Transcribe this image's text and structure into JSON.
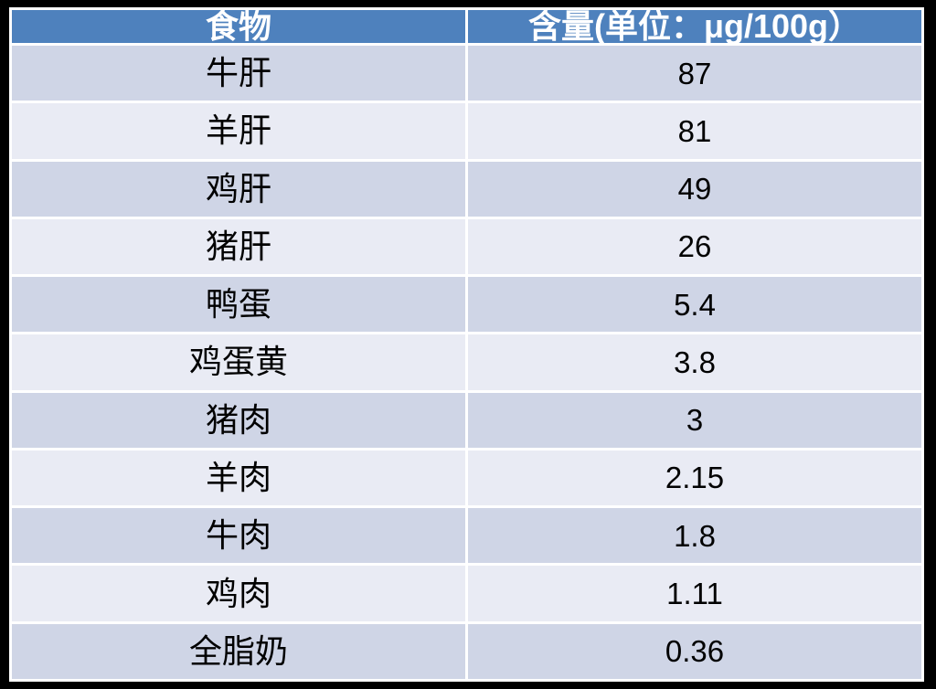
{
  "table": {
    "columns": [
      {
        "key": "food",
        "label": "食物"
      },
      {
        "key": "amount",
        "label": "含量(单位：μg/100g）"
      }
    ],
    "rows": [
      {
        "food": "牛肝",
        "amount": "87"
      },
      {
        "food": "羊肝",
        "amount": "81"
      },
      {
        "food": "鸡肝",
        "amount": "49"
      },
      {
        "food": "猪肝",
        "amount": "26"
      },
      {
        "food": "鸭蛋",
        "amount": "5.4"
      },
      {
        "food": "鸡蛋黄",
        "amount": "3.8"
      },
      {
        "food": "猪肉",
        "amount": "3"
      },
      {
        "food": "羊肉",
        "amount": "2.15"
      },
      {
        "food": "牛肉",
        "amount": "1.8"
      },
      {
        "food": "鸡肉",
        "amount": "1.11"
      },
      {
        "food": "全脂奶",
        "amount": "0.36"
      }
    ]
  },
  "colors": {
    "header_bg": "#4e81bd",
    "header_text": "#ffffff",
    "row_dark": "#cfd5e6",
    "row_light": "#e9ebf4",
    "body_text": "#000000",
    "frame": "#000000",
    "gap": "#ffffff"
  },
  "chart_data": {
    "type": "table",
    "title": "",
    "columns": [
      "食物",
      "含量(单位：μg/100g）"
    ],
    "categories": [
      "牛肝",
      "羊肝",
      "鸡肝",
      "猪肝",
      "鸭蛋",
      "鸡蛋黄",
      "猪肉",
      "羊肉",
      "牛肉",
      "鸡肉",
      "全脂奶"
    ],
    "values": [
      87,
      81,
      49,
      26,
      5.4,
      3.8,
      3,
      2.15,
      1.8,
      1.11,
      0.36
    ],
    "unit": "μg/100g",
    "layout": "two-column table, banded rows alternating dark/light starting dark, blue header row, all cells center-aligned"
  }
}
